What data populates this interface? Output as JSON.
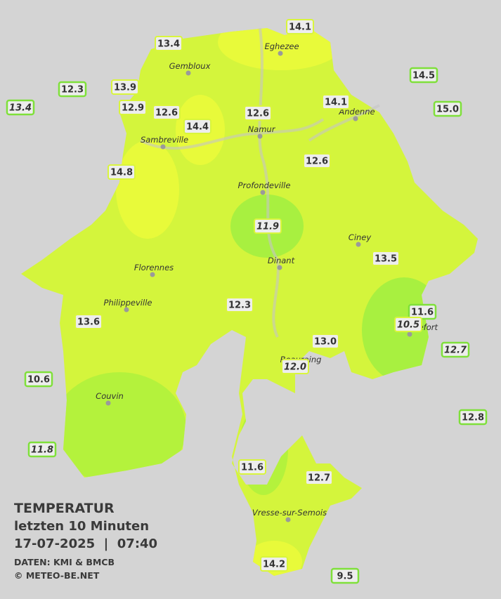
{
  "title": "TEMPERATUR",
  "subtitle": "letzten 10 Minuten",
  "timestamp": "17-07-2025  |  07:40",
  "source": "DATEN: KMI & BMCB",
  "credit": "© METEO-BE.NET",
  "towns": [
    "Eghezee",
    "Gembloux",
    "Andenne",
    "Namur",
    "Sambreville",
    "Profondeville",
    "Ciney",
    "Dinant",
    "Florennes",
    "Philippeville",
    "Rochefort",
    "Beauraing",
    "Couvin",
    "Vresse-sur-Semois"
  ],
  "stations": [
    {
      "label": "14.1",
      "italic": false,
      "outside": false
    },
    {
      "label": "13.4",
      "italic": false,
      "outside": false
    },
    {
      "label": "12.3",
      "italic": false,
      "outside": true
    },
    {
      "label": "13.9",
      "italic": false,
      "outside": false
    },
    {
      "label": "13.4",
      "italic": true,
      "outside": true
    },
    {
      "label": "12.9",
      "italic": false,
      "outside": false
    },
    {
      "label": "12.6",
      "italic": false,
      "outside": false
    },
    {
      "label": "14.4",
      "italic": false,
      "outside": false
    },
    {
      "label": "12.6",
      "italic": false,
      "outside": false
    },
    {
      "label": "14.1",
      "italic": false,
      "outside": false
    },
    {
      "label": "14.5",
      "italic": false,
      "outside": true
    },
    {
      "label": "15.0",
      "italic": false,
      "outside": true
    },
    {
      "label": "14.8",
      "italic": false,
      "outside": false
    },
    {
      "label": "12.6",
      "italic": false,
      "outside": false
    },
    {
      "label": "11.9",
      "italic": true,
      "outside": false
    },
    {
      "label": "13.5",
      "italic": false,
      "outside": false
    },
    {
      "label": "12.3",
      "italic": false,
      "outside": false
    },
    {
      "label": "11.6",
      "italic": false,
      "outside": true
    },
    {
      "label": "10.5",
      "italic": true,
      "outside": false
    },
    {
      "label": "13.6",
      "italic": false,
      "outside": false
    },
    {
      "label": "13.0",
      "italic": false,
      "outside": false
    },
    {
      "label": "12.7",
      "italic": true,
      "outside": true
    },
    {
      "label": "12.0",
      "italic": true,
      "outside": false
    },
    {
      "label": "10.6",
      "italic": false,
      "outside": true
    },
    {
      "label": "12.8",
      "italic": false,
      "outside": true
    },
    {
      "label": "11.8",
      "italic": true,
      "outside": true
    },
    {
      "label": "11.6",
      "italic": false,
      "outside": false
    },
    {
      "label": "12.7",
      "italic": false,
      "outside": false
    },
    {
      "label": "14.2",
      "italic": false,
      "outside": false
    },
    {
      "label": "9.5",
      "italic": false,
      "outside": true
    }
  ]
}
